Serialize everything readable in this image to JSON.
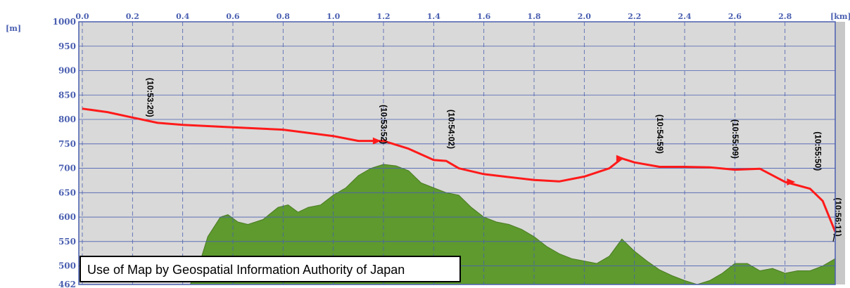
{
  "chart_data": {
    "type": "line",
    "x_unit": "[km]",
    "y_unit": "[m]",
    "xlim": [
      0,
      3.0
    ],
    "ylim": [
      462,
      1000
    ],
    "x_ticks": [
      "0.0",
      "0.2",
      "0.4",
      "0.6",
      "0.8",
      "1.0",
      "1.2",
      "1.4",
      "1.6",
      "1.8",
      "2.0",
      "2.2",
      "2.4",
      "2.6",
      "2.8"
    ],
    "y_ticks": [
      "1000",
      "950",
      "900",
      "850",
      "800",
      "750",
      "700",
      "650",
      "600",
      "550",
      "500",
      "462"
    ],
    "grid": true,
    "colors": {
      "flight": "#ff1a1a",
      "terrain": "#5e9a2e",
      "grid": "#4a5fb0",
      "plot_bg": "#d9d9d9"
    },
    "series": [
      {
        "type": "line",
        "values": [
          [
            0.0,
            822
          ],
          [
            0.1,
            815
          ],
          [
            0.2,
            804
          ],
          [
            0.3,
            793
          ],
          [
            0.4,
            789
          ],
          [
            0.6,
            784
          ],
          [
            0.8,
            779
          ],
          [
            1.0,
            766
          ],
          [
            1.1,
            756
          ],
          [
            1.2,
            756
          ],
          [
            1.3,
            740
          ],
          [
            1.4,
            717
          ],
          [
            1.45,
            715
          ],
          [
            1.5,
            700
          ],
          [
            1.6,
            688
          ],
          [
            1.7,
            682
          ],
          [
            1.8,
            676
          ],
          [
            1.9,
            673
          ],
          [
            2.0,
            683
          ],
          [
            2.1,
            700
          ],
          [
            2.15,
            720
          ],
          [
            2.2,
            712
          ],
          [
            2.3,
            703
          ],
          [
            2.4,
            703
          ],
          [
            2.5,
            702
          ],
          [
            2.6,
            697
          ],
          [
            2.7,
            699
          ],
          [
            2.8,
            672
          ],
          [
            2.9,
            658
          ],
          [
            2.95,
            633
          ],
          [
            3.0,
            570
          ]
        ]
      },
      {
        "type": "area",
        "values": [
          [
            0.43,
            462
          ],
          [
            0.47,
            510
          ],
          [
            0.5,
            560
          ],
          [
            0.55,
            600
          ],
          [
            0.58,
            605
          ],
          [
            0.62,
            590
          ],
          [
            0.66,
            585
          ],
          [
            0.72,
            595
          ],
          [
            0.78,
            620
          ],
          [
            0.82,
            625
          ],
          [
            0.86,
            610
          ],
          [
            0.9,
            620
          ],
          [
            0.95,
            625
          ],
          [
            1.0,
            645
          ],
          [
            1.05,
            660
          ],
          [
            1.1,
            685
          ],
          [
            1.15,
            700
          ],
          [
            1.2,
            708
          ],
          [
            1.25,
            705
          ],
          [
            1.3,
            695
          ],
          [
            1.35,
            670
          ],
          [
            1.4,
            660
          ],
          [
            1.45,
            650
          ],
          [
            1.5,
            645
          ],
          [
            1.55,
            620
          ],
          [
            1.6,
            600
          ],
          [
            1.65,
            590
          ],
          [
            1.7,
            585
          ],
          [
            1.75,
            575
          ],
          [
            1.8,
            560
          ],
          [
            1.85,
            540
          ],
          [
            1.9,
            525
          ],
          [
            1.95,
            515
          ],
          [
            2.0,
            510
          ],
          [
            2.05,
            505
          ],
          [
            2.1,
            520
          ],
          [
            2.15,
            555
          ],
          [
            2.2,
            530
          ],
          [
            2.25,
            510
          ],
          [
            2.3,
            492
          ],
          [
            2.35,
            480
          ],
          [
            2.4,
            470
          ],
          [
            2.45,
            462
          ],
          [
            2.5,
            470
          ],
          [
            2.55,
            485
          ],
          [
            2.6,
            505
          ],
          [
            2.65,
            505
          ],
          [
            2.7,
            490
          ],
          [
            2.75,
            495
          ],
          [
            2.8,
            485
          ],
          [
            2.85,
            490
          ],
          [
            2.9,
            490
          ],
          [
            2.95,
            500
          ],
          [
            3.0,
            515
          ],
          [
            3.0,
            462
          ]
        ]
      }
    ],
    "annotations": [
      {
        "text": "(10:53:20)",
        "x": 0.26,
        "y": 845
      },
      {
        "text": "(10:53:52)",
        "x": 1.19,
        "y": 790
      },
      {
        "text": "(10:54:02)",
        "x": 1.46,
        "y": 780
      },
      {
        "text": "(10:54:59)",
        "x": 2.29,
        "y": 770
      },
      {
        "text": "(10:55:09)",
        "x": 2.59,
        "y": 760
      },
      {
        "text": "(10:55:50)",
        "x": 2.92,
        "y": 735
      },
      {
        "text": "(10:56:11)",
        "x": 3.0,
        "y": 600
      }
    ],
    "arrows": [
      {
        "x": 1.18,
        "y": 756
      },
      {
        "x": 2.15,
        "y": 720
      },
      {
        "x": 2.83,
        "y": 672
      }
    ]
  },
  "caption": "Use of Map by Geospatial Information Authority of Japan"
}
